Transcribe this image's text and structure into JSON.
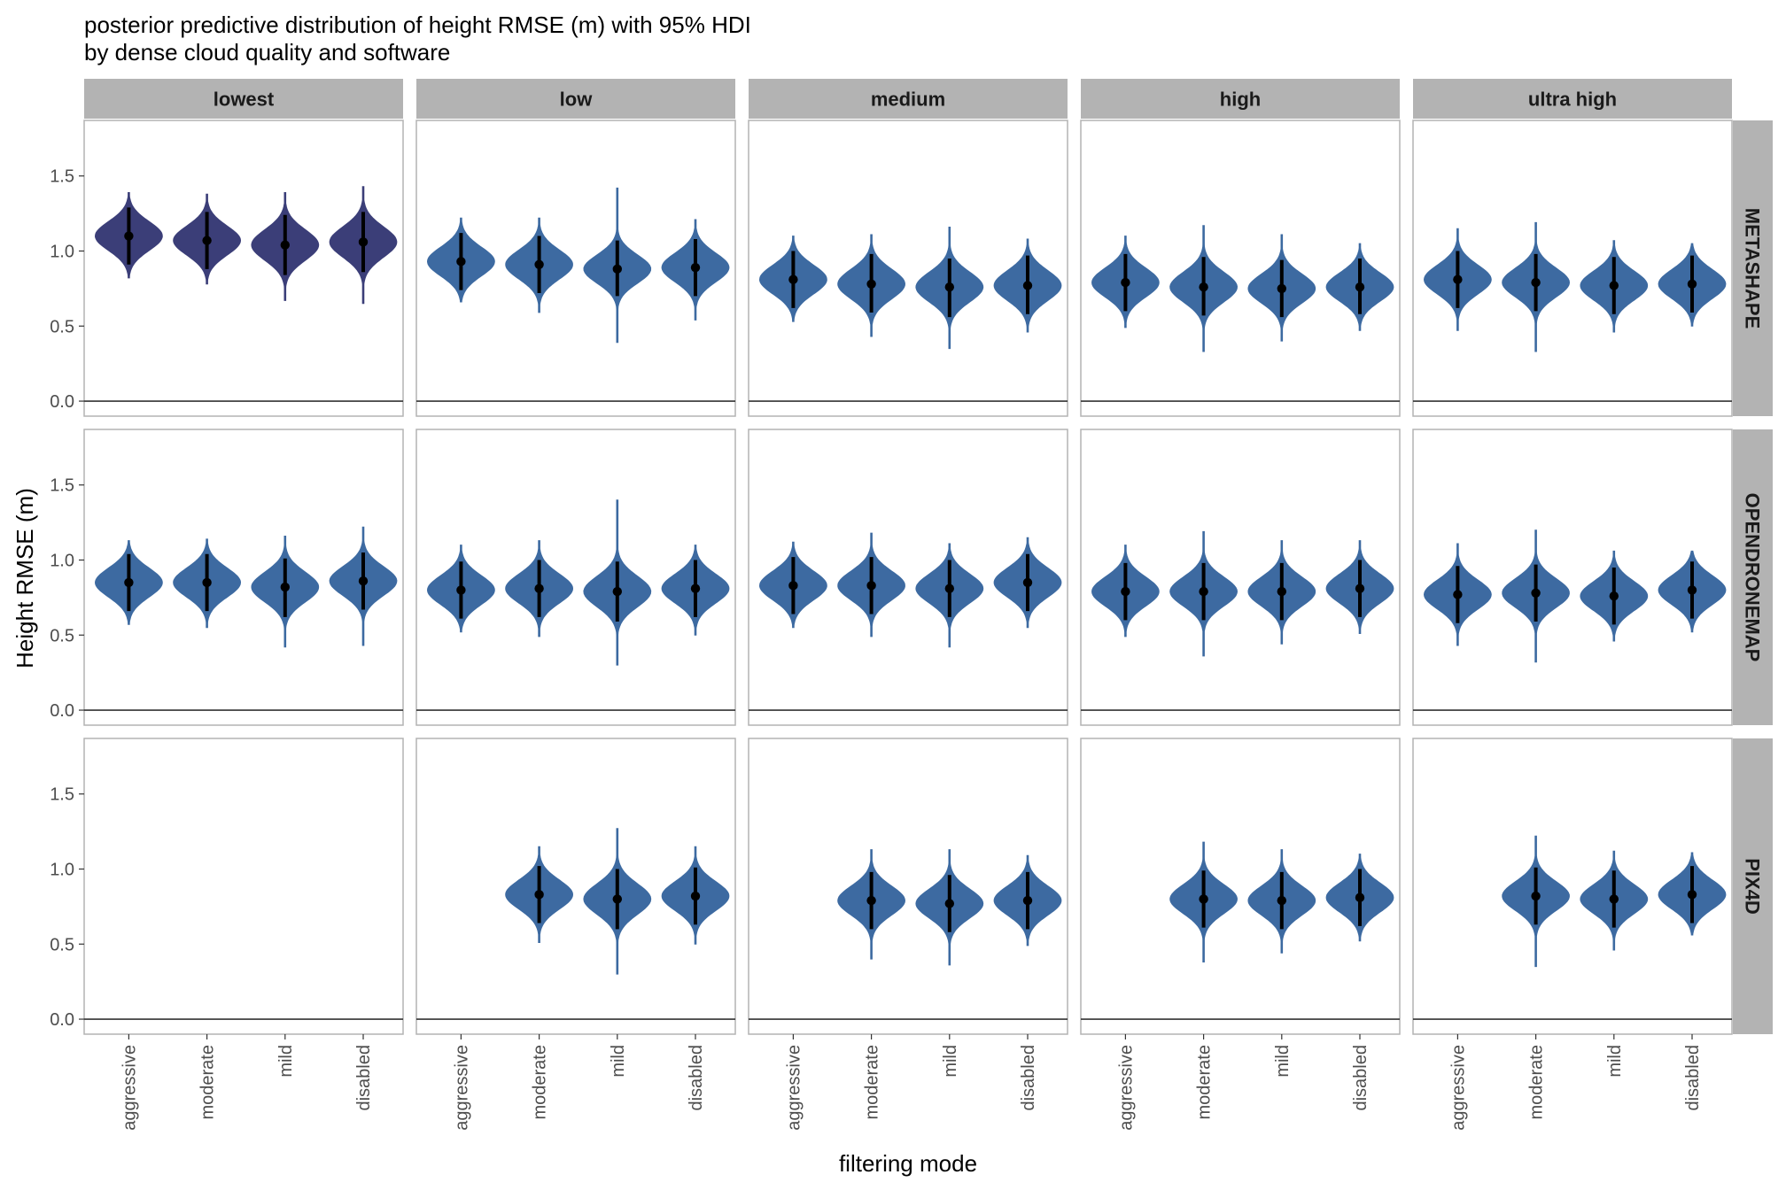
{
  "chart_data": {
    "type": "violin",
    "title": "posterior predictive distribution of height RMSE (m) with 95% HDI",
    "subtitle": "by dense cloud quality and software",
    "xlabel": "filtering mode",
    "ylabel": "Height RMSE (m)",
    "ylim": [
      -0.1,
      1.87
    ],
    "yticks": [
      0.0,
      0.5,
      1.0,
      1.5
    ],
    "ytick_labels": [
      "0.0",
      "0.5",
      "1.0",
      "1.5"
    ],
    "hline": 0,
    "grid": false,
    "categories": [
      "aggressive",
      "moderate",
      "mild",
      "disabled"
    ],
    "columns": [
      "lowest",
      "low",
      "medium",
      "high",
      "ultra high"
    ],
    "rows": [
      "METASHAPE",
      "OPENDRONEMAP",
      "PIX4D"
    ],
    "colors": {
      "violin": "#3d6aa1",
      "violin_highlight": "#3b3e78",
      "interval": "#000000",
      "strip": "#b3b3b3",
      "panel_border": "#b3b3b3",
      "zero_line": "#333333"
    },
    "panels": [
      {
        "row": "METASHAPE",
        "column": "lowest",
        "highlight": true,
        "median": [
          1.1,
          1.07,
          1.04,
          1.06
        ],
        "hdi_low": [
          0.91,
          0.88,
          0.84,
          0.86
        ],
        "hdi_high": [
          1.29,
          1.26,
          1.24,
          1.26
        ],
        "min": [
          0.82,
          0.78,
          0.67,
          0.65
        ],
        "max": [
          1.39,
          1.38,
          1.39,
          1.43
        ]
      },
      {
        "row": "METASHAPE",
        "column": "low",
        "highlight": false,
        "median": [
          0.93,
          0.91,
          0.88,
          0.89
        ],
        "hdi_low": [
          0.74,
          0.72,
          0.7,
          0.7
        ],
        "hdi_high": [
          1.12,
          1.1,
          1.07,
          1.08
        ],
        "min": [
          0.66,
          0.59,
          0.39,
          0.54
        ],
        "max": [
          1.22,
          1.22,
          1.42,
          1.21
        ]
      },
      {
        "row": "METASHAPE",
        "column": "medium",
        "highlight": false,
        "median": [
          0.81,
          0.78,
          0.76,
          0.77
        ],
        "hdi_low": [
          0.62,
          0.59,
          0.56,
          0.58
        ],
        "hdi_high": [
          1.0,
          0.98,
          0.95,
          0.97
        ],
        "min": [
          0.53,
          0.43,
          0.35,
          0.46
        ],
        "max": [
          1.1,
          1.11,
          1.16,
          1.08
        ]
      },
      {
        "row": "METASHAPE",
        "column": "high",
        "highlight": false,
        "median": [
          0.79,
          0.76,
          0.75,
          0.76
        ],
        "hdi_low": [
          0.6,
          0.57,
          0.56,
          0.58
        ],
        "hdi_high": [
          0.98,
          0.96,
          0.94,
          0.95
        ],
        "min": [
          0.49,
          0.33,
          0.4,
          0.47
        ],
        "max": [
          1.1,
          1.17,
          1.11,
          1.05
        ]
      },
      {
        "row": "METASHAPE",
        "column": "ultra high",
        "highlight": false,
        "median": [
          0.81,
          0.79,
          0.77,
          0.78
        ],
        "hdi_low": [
          0.62,
          0.6,
          0.58,
          0.59
        ],
        "hdi_high": [
          1.0,
          0.98,
          0.96,
          0.97
        ],
        "min": [
          0.47,
          0.33,
          0.46,
          0.5
        ],
        "max": [
          1.15,
          1.19,
          1.07,
          1.05
        ]
      },
      {
        "row": "OPENDRONEMAP",
        "column": "lowest",
        "highlight": false,
        "median": [
          0.85,
          0.85,
          0.82,
          0.86
        ],
        "hdi_low": [
          0.66,
          0.66,
          0.62,
          0.67
        ],
        "hdi_high": [
          1.04,
          1.04,
          1.01,
          1.05
        ],
        "min": [
          0.57,
          0.55,
          0.42,
          0.43
        ],
        "max": [
          1.13,
          1.14,
          1.16,
          1.22
        ]
      },
      {
        "row": "OPENDRONEMAP",
        "column": "low",
        "highlight": false,
        "median": [
          0.8,
          0.81,
          0.79,
          0.81
        ],
        "hdi_low": [
          0.61,
          0.62,
          0.59,
          0.62
        ],
        "hdi_high": [
          0.99,
          1.0,
          0.99,
          1.0
        ],
        "min": [
          0.52,
          0.49,
          0.3,
          0.5
        ],
        "max": [
          1.1,
          1.13,
          1.4,
          1.1
        ]
      },
      {
        "row": "OPENDRONEMAP",
        "column": "medium",
        "highlight": false,
        "median": [
          0.83,
          0.83,
          0.81,
          0.85
        ],
        "hdi_low": [
          0.64,
          0.64,
          0.62,
          0.66
        ],
        "hdi_high": [
          1.02,
          1.02,
          1.0,
          1.04
        ],
        "min": [
          0.55,
          0.49,
          0.42,
          0.55
        ],
        "max": [
          1.12,
          1.18,
          1.11,
          1.15
        ]
      },
      {
        "row": "OPENDRONEMAP",
        "column": "high",
        "highlight": false,
        "median": [
          0.79,
          0.79,
          0.79,
          0.81
        ],
        "hdi_low": [
          0.6,
          0.6,
          0.6,
          0.62
        ],
        "hdi_high": [
          0.98,
          0.98,
          0.98,
          1.0
        ],
        "min": [
          0.49,
          0.36,
          0.44,
          0.51
        ],
        "max": [
          1.1,
          1.19,
          1.13,
          1.13
        ]
      },
      {
        "row": "OPENDRONEMAP",
        "column": "ultra high",
        "highlight": false,
        "median": [
          0.77,
          0.78,
          0.76,
          0.8
        ],
        "hdi_low": [
          0.58,
          0.59,
          0.57,
          0.61
        ],
        "hdi_high": [
          0.96,
          0.97,
          0.95,
          0.99
        ],
        "min": [
          0.43,
          0.32,
          0.46,
          0.52
        ],
        "max": [
          1.11,
          1.2,
          1.06,
          1.06
        ]
      },
      {
        "row": "PIX4D",
        "column": "lowest",
        "highlight": false,
        "median": [
          null,
          null,
          null,
          null
        ],
        "hdi_low": [
          null,
          null,
          null,
          null
        ],
        "hdi_high": [
          null,
          null,
          null,
          null
        ],
        "min": [
          null,
          null,
          null,
          null
        ],
        "max": [
          null,
          null,
          null,
          null
        ]
      },
      {
        "row": "PIX4D",
        "column": "low",
        "highlight": false,
        "median": [
          null,
          0.83,
          0.8,
          0.82
        ],
        "hdi_low": [
          null,
          0.64,
          0.6,
          0.63
        ],
        "hdi_high": [
          null,
          1.02,
          1.0,
          1.01
        ],
        "min": [
          null,
          0.51,
          0.3,
          0.5
        ],
        "max": [
          null,
          1.15,
          1.27,
          1.15
        ]
      },
      {
        "row": "PIX4D",
        "column": "medium",
        "highlight": false,
        "median": [
          null,
          0.79,
          0.77,
          0.79
        ],
        "hdi_low": [
          null,
          0.6,
          0.58,
          0.6
        ],
        "hdi_high": [
          null,
          0.98,
          0.96,
          0.98
        ],
        "min": [
          null,
          0.4,
          0.36,
          0.49
        ],
        "max": [
          null,
          1.13,
          1.13,
          1.09
        ]
      },
      {
        "row": "PIX4D",
        "column": "high",
        "highlight": false,
        "median": [
          null,
          0.8,
          0.79,
          0.81
        ],
        "hdi_low": [
          null,
          0.61,
          0.6,
          0.62
        ],
        "hdi_high": [
          null,
          0.99,
          0.98,
          1.0
        ],
        "min": [
          null,
          0.38,
          0.44,
          0.52
        ],
        "max": [
          null,
          1.18,
          1.13,
          1.1
        ]
      },
      {
        "row": "PIX4D",
        "column": "ultra high",
        "highlight": false,
        "median": [
          null,
          0.82,
          0.8,
          0.83
        ],
        "hdi_low": [
          null,
          0.63,
          0.61,
          0.64
        ],
        "hdi_high": [
          null,
          1.01,
          0.99,
          1.02
        ],
        "min": [
          null,
          0.35,
          0.46,
          0.56
        ],
        "max": [
          null,
          1.22,
          1.12,
          1.11
        ]
      }
    ]
  }
}
